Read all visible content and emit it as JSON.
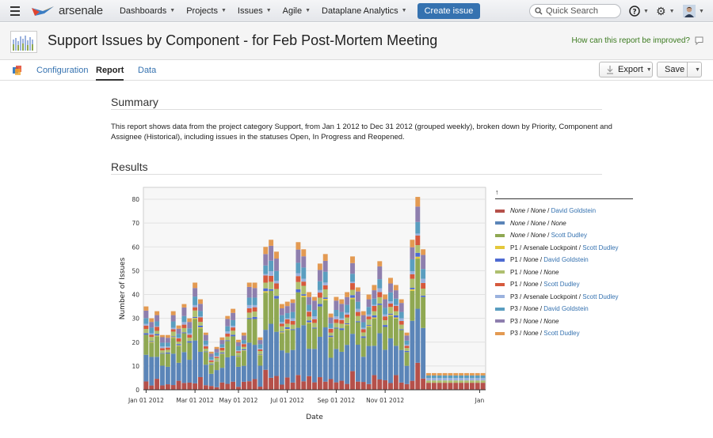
{
  "nav": {
    "logo": "arsenale",
    "items": [
      {
        "label": "Dashboards"
      },
      {
        "label": "Projects"
      },
      {
        "label": "Issues"
      },
      {
        "label": "Agile"
      },
      {
        "label": "Dataplane Analytics"
      }
    ],
    "create_label": "Create issue",
    "search_placeholder": "Quick Search"
  },
  "header": {
    "title": "Support Issues by Component - for Feb Post-Mortem Meeting",
    "improve_link": "How can this report be improved?"
  },
  "tabs": [
    {
      "label": "Configuration"
    },
    {
      "label": "Report"
    },
    {
      "label": "Data"
    }
  ],
  "toolbar": {
    "export_label": "Export",
    "save_label": "Save"
  },
  "summary": {
    "heading": "Summary",
    "text": "This report shows data from the project category Support, from Jan 1 2012 to Dec 31 2012 (grouped weekly), broken down by Priority, Component and Assignee (Historical), including issues in the statuses Open, In Progress and Reopened."
  },
  "results": {
    "heading": "Results"
  },
  "legend": {
    "sort_icon": "up-arrow",
    "entries": [
      {
        "priority": "None",
        "component": "None",
        "assignee": "David Goldstein",
        "color": "#b5504a"
      },
      {
        "priority": "None",
        "component": "None",
        "assignee": "None",
        "color": "#5b85b8"
      },
      {
        "priority": "None",
        "component": "None",
        "assignee": "Scott Dudley",
        "color": "#8fa852"
      },
      {
        "priority": "P1",
        "component": "Arsenale Lockpoint",
        "assignee": "Scott Dudley",
        "color": "#e4c83a"
      },
      {
        "priority": "P1",
        "component": "None",
        "assignee": "David Goldstein",
        "color": "#4e6bd2"
      },
      {
        "priority": "P1",
        "component": "None",
        "assignee": "None",
        "color": "#aebf6f"
      },
      {
        "priority": "P1",
        "component": "None",
        "assignee": "Scott Dudley",
        "color": "#d6593c"
      },
      {
        "priority": "P3",
        "component": "Arsenale Lockpoint",
        "assignee": "Scott Dudley",
        "color": "#9bb2de"
      },
      {
        "priority": "P3",
        "component": "None",
        "assignee": "David Goldstein",
        "color": "#5a9ec0"
      },
      {
        "priority": "P3",
        "component": "None",
        "assignee": "None",
        "color": "#8e7fae"
      },
      {
        "priority": "P3",
        "component": "None",
        "assignee": "Scott Dudley",
        "color": "#e39a52"
      }
    ]
  },
  "chart_data": {
    "type": "bar",
    "stacked": true,
    "xlabel": "Date",
    "ylabel": "Number of Issues",
    "ylim": [
      0,
      85
    ],
    "yticks": [
      0,
      10,
      20,
      30,
      40,
      50,
      60,
      70,
      80
    ],
    "xtick_labels": [
      "Jan 01 2012",
      "Mar 01 2012",
      "May 01 2012",
      "Jul 01 2012",
      "Sep 01 2012",
      "Nov 01 2012",
      "Jan"
    ],
    "grid": true,
    "totals": [
      35,
      30,
      33,
      23,
      23,
      33,
      27,
      36,
      30,
      45,
      38,
      24,
      16,
      18,
      22,
      31,
      34,
      21,
      24,
      45,
      45,
      22,
      60,
      63,
      58,
      36,
      37,
      38,
      62,
      59,
      41,
      39,
      53,
      57,
      32,
      39,
      38,
      41,
      56,
      43,
      33,
      40,
      44,
      54,
      40,
      47,
      44,
      38,
      24,
      63,
      81,
      59,
      7,
      7,
      7,
      7,
      7,
      7,
      7,
      7,
      7,
      7,
      7
    ]
  }
}
